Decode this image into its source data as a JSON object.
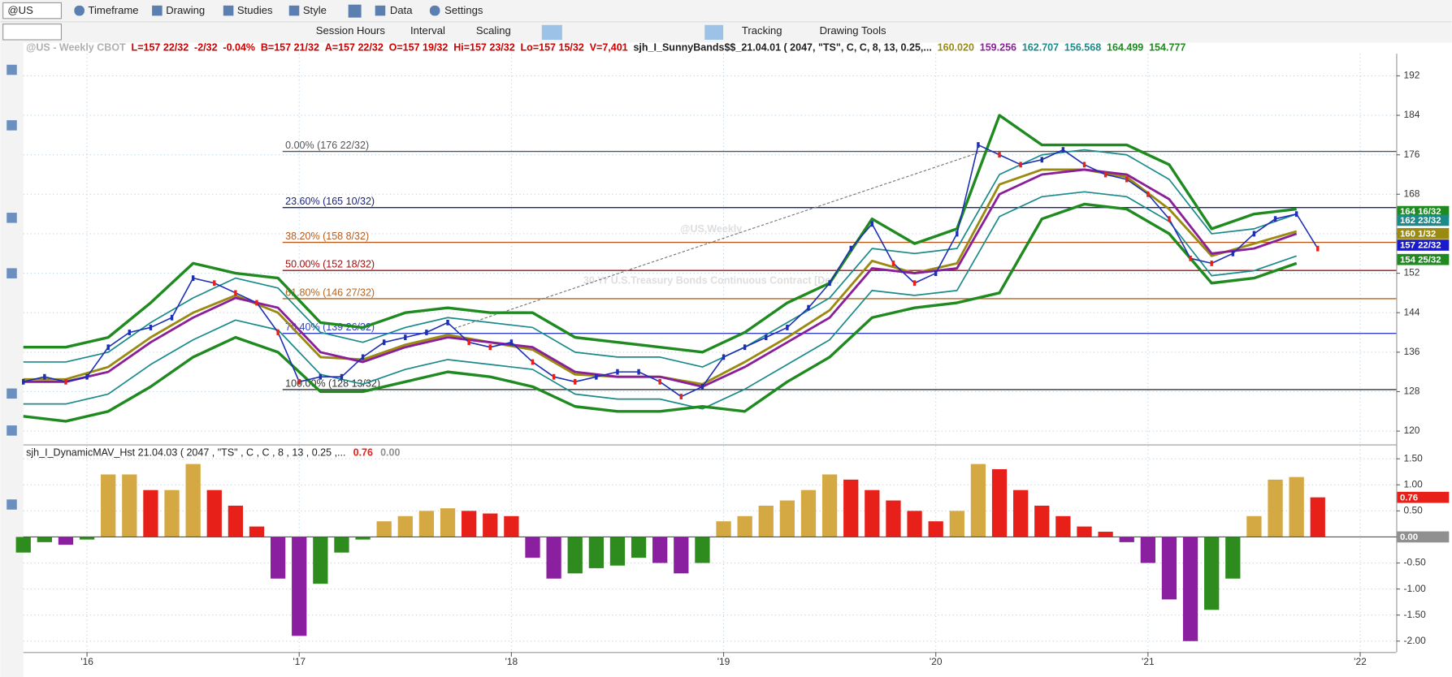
{
  "toolbar": {
    "symbol": "@US",
    "menus": [
      "Timeframe",
      "Drawing",
      "Studies",
      "Style",
      "Data",
      "Settings"
    ],
    "tools": [
      "Session Hours",
      "Interval",
      "Scaling",
      "Tracking",
      "Drawing Tools"
    ]
  },
  "info_line": [
    {
      "text": "@US - Weekly  CBOT",
      "color": "#b0b0b0"
    },
    {
      "text": "L=157 22/32",
      "color": "#d00000"
    },
    {
      "text": "-2/32",
      "color": "#d00000"
    },
    {
      "text": "-0.04%",
      "color": "#d00000"
    },
    {
      "text": "B=157 21/32",
      "color": "#d00000"
    },
    {
      "text": "A=157 22/32",
      "color": "#d00000"
    },
    {
      "text": "O=157 19/32",
      "color": "#d00000"
    },
    {
      "text": "Hi=157 23/32",
      "color": "#d00000"
    },
    {
      "text": "Lo=157 15/32",
      "color": "#d00000"
    },
    {
      "text": "V=7,401",
      "color": "#d00000"
    },
    {
      "text": "sjh_I_SunnyBands$$_21.04.01 (  2047,  \"TS\",  C,  C,    8,  13,  0.25,...",
      "color": "#222222"
    },
    {
      "text": "160.020",
      "color": "#9a8a10"
    },
    {
      "text": "159.256",
      "color": "#8a1f9a"
    },
    {
      "text": "162.707",
      "color": "#1a8a8a"
    },
    {
      "text": "156.568",
      "color": "#1a8a8a"
    },
    {
      "text": "164.499",
      "color": "#1f8a1f"
    },
    {
      "text": "154.777",
      "color": "#1f8a1f"
    }
  ],
  "chart_data": [
    {
      "type": "line",
      "watermark": [
        "@US,Weekly",
        "30 Yr U.S.Treasury Bonds Continuous Contract [De..."
      ],
      "x": [
        2015.7,
        2015.8,
        2015.9,
        2016.0,
        2016.1,
        2016.2,
        2016.3,
        2016.4,
        2016.5,
        2016.6,
        2016.7,
        2016.8,
        2016.9,
        2017.0,
        2017.1,
        2017.2,
        2017.3,
        2017.4,
        2017.5,
        2017.6,
        2017.7,
        2017.8,
        2017.9,
        2018.0,
        2018.1,
        2018.2,
        2018.3,
        2018.4,
        2018.5,
        2018.6,
        2018.7,
        2018.8,
        2018.9,
        2019.0,
        2019.1,
        2019.2,
        2019.3,
        2019.4,
        2019.5,
        2019.6,
        2019.7,
        2019.8,
        2019.9,
        2020.0,
        2020.1,
        2020.2,
        2020.3,
        2020.4,
        2020.5,
        2020.6,
        2020.7,
        2020.8,
        2020.9,
        2021.0,
        2021.1,
        2021.2,
        2021.3,
        2021.4,
        2021.5,
        2021.6,
        2021.7,
        2021.8
      ],
      "values": [
        130,
        131,
        130,
        131,
        137,
        140,
        141,
        143,
        151,
        150,
        148,
        146,
        140,
        130,
        131,
        131,
        135,
        138,
        139,
        140,
        142,
        138,
        137,
        138,
        134,
        131,
        130,
        131,
        132,
        132,
        130,
        127,
        129,
        135,
        137,
        139,
        141,
        145,
        150,
        157,
        162,
        154,
        150,
        152,
        160,
        178,
        176,
        174,
        175,
        177,
        174,
        172,
        171,
        168,
        163,
        155,
        154,
        156,
        160,
        163,
        164,
        157
      ],
      "color": "#1c2fb5",
      "bands": {
        "x": [
          2015.7,
          2015.9,
          2016.1,
          2016.3,
          2016.5,
          2016.7,
          2016.9,
          2017.1,
          2017.3,
          2017.5,
          2017.7,
          2017.9,
          2018.1,
          2018.3,
          2018.5,
          2018.7,
          2018.9,
          2019.1,
          2019.3,
          2019.5,
          2019.7,
          2019.9,
          2020.1,
          2020.3,
          2020.5,
          2020.7,
          2020.9,
          2021.1,
          2021.3,
          2021.5,
          2021.7
        ],
        "series": [
          {
            "color": "#1f8a1f",
            "width": 3,
            "values": [
              137,
              137,
              139,
              146,
              154,
              152,
              151,
              142,
              141,
              144,
              145,
              144,
              144,
              139,
              138,
              137,
              136,
              140,
              146,
              150,
              163,
              158,
              161,
              184,
              178,
              178,
              178,
              174,
              161,
              164,
              165
            ]
          },
          {
            "color": "#1a8a8a",
            "width": 1.5,
            "values": [
              134,
              134,
              136,
              142,
              147,
              151,
              149,
              140,
              138,
              141,
              143,
              142,
              141,
              136,
              135,
              135,
              133,
              137,
              142,
              147,
              157,
              156,
              157,
              172,
              176,
              177,
              176,
              171,
              160,
              161,
              164
            ]
          },
          {
            "color": "#9a8a10",
            "width": 2.5,
            "values": [
              130.5,
              130.5,
              133,
              139,
              144,
              147.5,
              144,
              135,
              134.5,
              137.5,
              139.5,
              138,
              136.5,
              131.5,
              131,
              131,
              129.5,
              134,
              139,
              144.5,
              154.5,
              152,
              154,
              170,
              173,
              173,
              171.5,
              165,
              155.5,
              158,
              160.5
            ]
          },
          {
            "color": "#8a1f9a",
            "width": 2.5,
            "values": [
              130,
              130,
              132,
              138,
              143,
              147,
              145,
              136,
              134,
              137,
              139,
              138,
              137,
              132,
              131,
              131,
              129,
              133,
              138,
              143,
              153,
              152,
              153,
              168,
              172,
              173,
              172,
              167,
              156,
              157,
              160
            ]
          },
          {
            "color": "#1a8a8a",
            "width": 1.5,
            "values": [
              125.5,
              125.5,
              127.5,
              133.5,
              138.5,
              142.5,
              140.5,
              131.5,
              129.5,
              132.5,
              134.5,
              133.5,
              132.5,
              127.5,
              126.5,
              126.5,
              124.5,
              128.5,
              133.5,
              138.5,
              148.5,
              147.5,
              148.5,
              163.5,
              167.5,
              168.5,
              167.5,
              162.5,
              151.5,
              152.5,
              155.5
            ]
          },
          {
            "color": "#1f8a1f",
            "width": 3,
            "values": [
              123,
              122,
              124,
              129,
              135,
              139,
              136,
              128,
              128,
              130,
              132,
              131,
              129,
              125,
              124,
              124,
              125,
              124,
              130,
              135,
              143,
              145,
              146,
              148,
              163,
              166,
              165,
              160,
              150,
              151,
              154
            ]
          }
        ]
      },
      "fib_levels": [
        {
          "label": "0.00% (176 22/32)",
          "value": 176.6875,
          "color": "#555555"
        },
        {
          "label": "23.60% (165 10/32)",
          "value": 165.3125,
          "color": "#1a237e"
        },
        {
          "label": "38.20% (158 8/32)",
          "value": 158.25,
          "color": "#b85c1e"
        },
        {
          "label": "50.00% (152 18/32)",
          "value": 152.5625,
          "color": "#a01010"
        },
        {
          "label": "61.80% (146 27/32)",
          "value": 146.84375,
          "color": "#b8641e"
        },
        {
          "label": "76.40% (139 26/32)",
          "value": 139.8125,
          "color": "#3040c0"
        },
        {
          "label": "100.00% (128 13/32)",
          "value": 128.40625,
          "color": "#333333"
        }
      ],
      "trendline": {
        "x": [
          2017.73,
          2020.2
        ],
        "values": [
          140.8,
          176.4
        ]
      },
      "xlim": [
        2015.7,
        2022.17
      ],
      "ylim": [
        117.4,
        196.5
      ],
      "xticks": [
        {
          "value": 2016,
          "label": "'16"
        },
        {
          "value": 2017,
          "label": "'17"
        },
        {
          "value": 2018,
          "label": "'18"
        },
        {
          "value": 2019,
          "label": "'19"
        },
        {
          "value": 2020,
          "label": "'20"
        },
        {
          "value": 2021,
          "label": "'21"
        },
        {
          "value": 2022,
          "label": "'22"
        }
      ],
      "yticks": [
        120,
        128,
        136,
        144,
        152,
        160,
        168,
        176,
        184,
        192
      ],
      "tags": [
        {
          "value": 164.5,
          "label": "164 16/32",
          "color": "#1f8a1f"
        },
        {
          "value": 162.71875,
          "label": "162 23/32",
          "color": "#1a8a8a"
        },
        {
          "value": 160.03125,
          "label": "160 1/32",
          "color": "#9a8a10"
        },
        {
          "value": 157.6875,
          "label": "157 22/32",
          "color": "#1a1acd"
        },
        {
          "value": 154.78125,
          "label": "154 25/32",
          "color": "#1f8a1f"
        }
      ],
      "grid": true
    },
    {
      "type": "bar",
      "title": "sjh_I_DynamicMAV_Hst 21.04.03 ( 2047 , \"TS\" , C , C , 8 , 13 , 0.25 ,...",
      "title_values": [
        {
          "text": "0.76",
          "color": "#e8201a"
        },
        {
          "text": "0.00",
          "color": "#909090"
        }
      ],
      "x": [
        2015.7,
        2015.8,
        2015.9,
        2016.0,
        2016.1,
        2016.2,
        2016.3,
        2016.4,
        2016.5,
        2016.6,
        2016.7,
        2016.8,
        2016.9,
        2017.0,
        2017.1,
        2017.2,
        2017.3,
        2017.4,
        2017.5,
        2017.6,
        2017.7,
        2017.8,
        2017.9,
        2018.0,
        2018.1,
        2018.2,
        2018.3,
        2018.4,
        2018.5,
        2018.6,
        2018.7,
        2018.8,
        2018.9,
        2019.0,
        2019.1,
        2019.2,
        2019.3,
        2019.4,
        2019.5,
        2019.6,
        2019.7,
        2019.8,
        2019.9,
        2020.0,
        2020.1,
        2020.2,
        2020.3,
        2020.4,
        2020.5,
        2020.6,
        2020.7,
        2020.8,
        2020.9,
        2021.0,
        2021.1,
        2021.2,
        2021.3,
        2021.4,
        2021.5,
        2021.6,
        2021.7,
        2021.8
      ],
      "values": [
        -0.3,
        -0.1,
        -0.15,
        -0.05,
        1.2,
        1.2,
        0.9,
        0.9,
        1.4,
        0.9,
        0.6,
        0.2,
        -0.8,
        -1.9,
        -0.9,
        -0.3,
        -0.05,
        0.3,
        0.4,
        0.5,
        0.55,
        0.5,
        0.45,
        0.4,
        -0.4,
        -0.8,
        -0.7,
        -0.6,
        -0.55,
        -0.4,
        -0.5,
        -0.7,
        -0.5,
        0.3,
        0.4,
        0.6,
        0.7,
        0.9,
        1.2,
        1.1,
        0.9,
        0.7,
        0.5,
        0.3,
        0.5,
        1.4,
        1.3,
        0.9,
        0.6,
        0.4,
        0.2,
        0.1,
        -0.1,
        -0.5,
        -1.2,
        -2.0,
        -1.4,
        -0.8,
        0.4,
        1.1,
        1.15,
        0.76
      ],
      "colors": {
        "positive_rising": "#d4a843",
        "positive_falling": "#e8201a",
        "negative_falling": "#8a1fa0",
        "negative_rising": "#2e8b1e"
      },
      "xlim": [
        2015.7,
        2022.17
      ],
      "ylim": [
        -2.21,
        1.75
      ],
      "yticks": [
        {
          "value": 1.5,
          "label": "1.50"
        },
        {
          "value": 1.0,
          "label": "1.00"
        },
        {
          "value": 0.5,
          "label": "0.50"
        },
        {
          "value": 0,
          "label": "0.00"
        },
        {
          "value": -0.5,
          "label": "-0.50"
        },
        {
          "value": -1.0,
          "label": "-1.00"
        },
        {
          "value": -1.5,
          "label": "-1.50"
        },
        {
          "value": -2.0,
          "label": "-2.00"
        }
      ],
      "tags": [
        {
          "value": 0.76,
          "label": "0.76",
          "color": "#e8201a"
        },
        {
          "value": 0,
          "label": "0.00",
          "color": "#909090"
        }
      ],
      "grid": true
    }
  ]
}
